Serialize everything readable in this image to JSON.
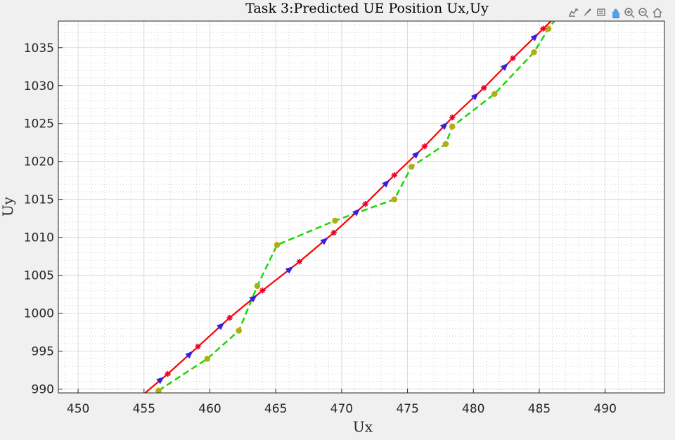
{
  "toolbar": {
    "icons": [
      "export-icon",
      "brush-icon",
      "datatip-icon",
      "pan-icon",
      "zoom-in-icon",
      "zoom-out-icon",
      "home-icon"
    ]
  },
  "chart_data": {
    "type": "line",
    "title": "Task 3:Predicted UE Position Ux,Uy",
    "xlabel": "Ux",
    "ylabel": "Uy",
    "xlim": [
      448.5,
      494.5
    ],
    "ylim": [
      989.5,
      1038.5
    ],
    "xticks": [
      450,
      455,
      460,
      465,
      470,
      475,
      480,
      485,
      490
    ],
    "yticks": [
      990,
      995,
      1000,
      1005,
      1010,
      1015,
      1020,
      1025,
      1030,
      1035
    ],
    "grid": true,
    "minor_grid": true,
    "series": [
      {
        "color": "#ff0000",
        "style": "solid",
        "marker": "asterisk",
        "x": [
          454.4,
          456.8,
          459.1,
          461.5,
          464.0,
          466.8,
          469.4,
          471.8,
          474.0,
          476.3,
          478.4,
          480.8,
          483.0,
          485.3,
          487.5
        ],
        "y": [
          988.5,
          992.0,
          995.6,
          999.4,
          1003.0,
          1006.8,
          1010.6,
          1014.4,
          1018.2,
          1022.0,
          1025.8,
          1029.7,
          1033.6,
          1037.5,
          1041.2
        ]
      },
      {
        "color": "#00e600",
        "style": "dashed",
        "marker": "circle",
        "x": [
          456.1,
          459.8,
          462.2,
          463.6,
          465.1,
          469.5,
          474.0,
          475.3,
          477.9,
          478.4,
          481.6,
          484.6,
          485.7,
          486.8
        ],
        "y": [
          989.8,
          994.0,
          997.7,
          1003.6,
          1009.0,
          1012.2,
          1015.0,
          1019.3,
          1022.3,
          1024.6,
          1028.9,
          1034.4,
          1037.5,
          1040.0
        ]
      },
      {
        "color": "#2b2bff",
        "style": "arrows",
        "marker": "none",
        "x": [
          455.1,
          456.8,
          459.1,
          461.5,
          464.0,
          466.8,
          469.4,
          471.8,
          474.0,
          476.3,
          478.4,
          480.8,
          483.0,
          485.3
        ],
        "y": [
          989.6,
          992.0,
          995.6,
          999.4,
          1003.0,
          1006.8,
          1010.6,
          1014.4,
          1018.2,
          1022.0,
          1025.8,
          1029.7,
          1033.6,
          1037.5
        ]
      }
    ]
  }
}
